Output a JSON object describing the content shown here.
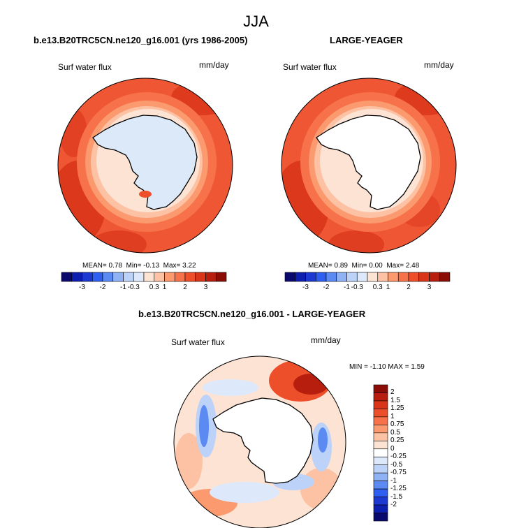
{
  "page_title": "JJA",
  "chart_data": [
    {
      "type": "heatmap",
      "title": "b.e13.B20TRC5CN.ne120_g16.001 (yrs 1986-2005)",
      "left_label": "Surf water flux",
      "units": "mm/day",
      "stats": {
        "mean_label": "MEAN=",
        "mean": "0.78",
        "min_label": "Min=",
        "min": "-0.13",
        "max_label": "Max=",
        "max": "3.22"
      },
      "colorbar_ticks": [
        "-3",
        "-2",
        "-1",
        "-0.3",
        "0.3",
        "1",
        "2",
        "3"
      ],
      "colorbar_colors": [
        "#0a0a6e",
        "#0d1fae",
        "#1c3ad2",
        "#2f5ff0",
        "#5a8af2",
        "#8fb2f5",
        "#bdd2f8",
        "#dde9fb",
        "#fde3d3",
        "#fcc2a3",
        "#fb9a6f",
        "#f7724a",
        "#ee4f2b",
        "#d93519",
        "#b81e0e",
        "#8b0c05"
      ],
      "region": "Southern Hemisphere polar stereographic"
    },
    {
      "type": "heatmap",
      "title": "LARGE-YEAGER",
      "left_label": "Surf water flux",
      "units": "mm/day",
      "stats": {
        "mean_label": "MEAN=",
        "mean": "0.89",
        "min_label": "Min=",
        "min": "0.00",
        "max_label": "Max=",
        "max": "2.48"
      },
      "colorbar_ticks": [
        "-3",
        "-2",
        "-1",
        "-0.3",
        "0.3",
        "1",
        "2",
        "3"
      ],
      "colorbar_colors": [
        "#0a0a6e",
        "#0d1fae",
        "#1c3ad2",
        "#2f5ff0",
        "#5a8af2",
        "#8fb2f5",
        "#bdd2f8",
        "#dde9fb",
        "#fde3d3",
        "#fcc2a3",
        "#fb9a6f",
        "#f7724a",
        "#ee4f2b",
        "#d93519",
        "#b81e0e",
        "#8b0c05"
      ],
      "region": "Southern Hemisphere polar stereographic"
    },
    {
      "type": "heatmap",
      "title": "b.e13.B20TRC5CN.ne120_g16.001 - LARGE-YEAGER",
      "left_label": "Surf water flux",
      "units": "mm/day",
      "minmax_text": "MIN =  -1.10 MAX =   1.59",
      "colorbar_ticks": [
        "2",
        "1.5",
        "1.25",
        "1",
        "0.75",
        "0.5",
        "0.25",
        "0",
        "-0.25",
        "-0.5",
        "-0.75",
        "-1",
        "-1.25",
        "-1.5",
        "-2"
      ],
      "colorbar_colors": [
        "#8b0c05",
        "#b81e0e",
        "#d93519",
        "#ee4f2b",
        "#f7724a",
        "#fb9a6f",
        "#fcc2a3",
        "#fde3d3",
        "#ffffff",
        "#dde9fb",
        "#bdd2f8",
        "#8fb2f5",
        "#5a8af2",
        "#2f5ff0",
        "#1c3ad2",
        "#0d1fae",
        "#0a0a6e"
      ],
      "region": "Southern Hemisphere polar stereographic"
    }
  ]
}
